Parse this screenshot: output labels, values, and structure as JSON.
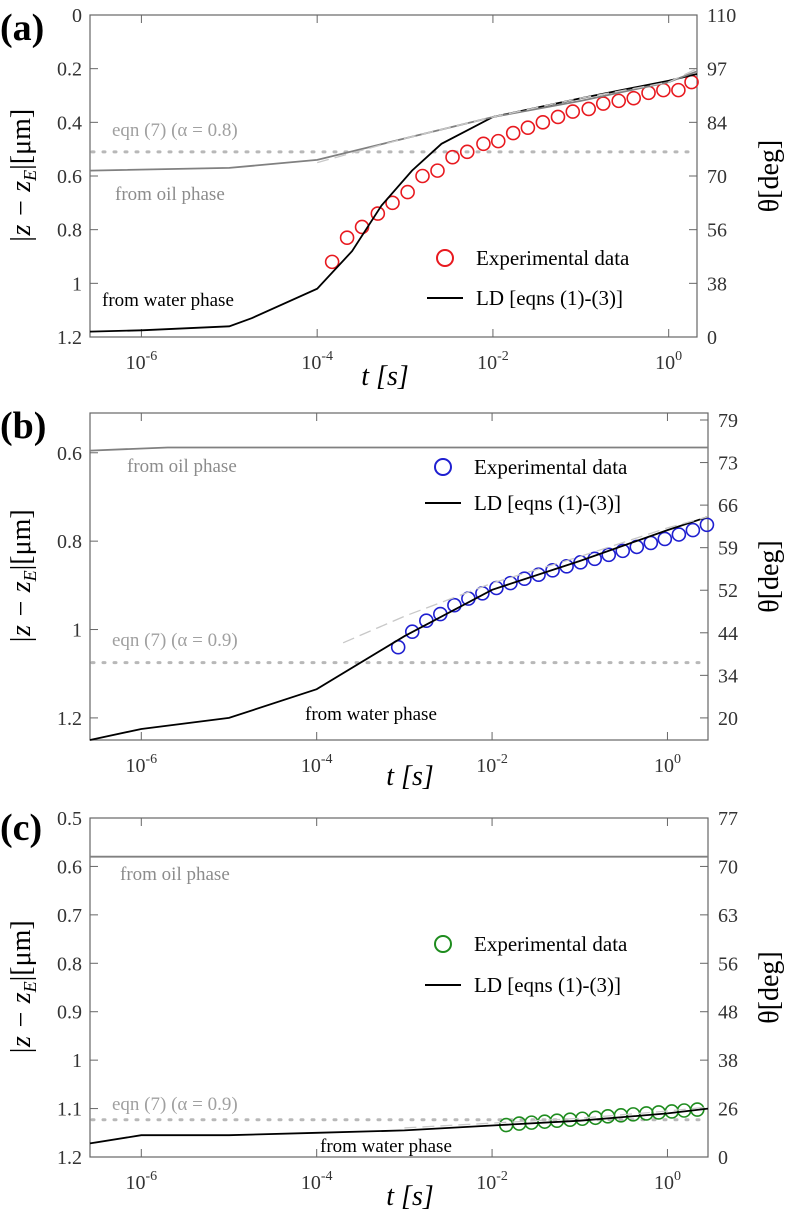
{
  "chart_data": [
    {
      "type": "line",
      "panel_label": "(a)",
      "xlabel": "t [s]",
      "ylabel": [
        "|z − z",
        "E",
        "|[μm]"
      ],
      "y2label": "θ[deg]",
      "xscale": "log",
      "xlim": [
        2.6e-07,
        2.1
      ],
      "xticks": [
        {
          "value": 1e-06,
          "label": "10",
          "exponent": "-6"
        },
        {
          "value": 0.0001,
          "label": "10",
          "exponent": "-4"
        },
        {
          "value": 0.01,
          "label": "10",
          "exponent": "-2"
        },
        {
          "value": 1,
          "label": "10",
          "exponent": "0"
        }
      ],
      "ylim": [
        0,
        1.2
      ],
      "y_reversed": true,
      "yticks": [
        0,
        0.2,
        0.4,
        0.6,
        0.8,
        1,
        1.2
      ],
      "y2ticks": [
        110,
        97,
        84,
        70,
        56,
        38,
        0
      ],
      "series": [
        {
          "name": "Experimental data",
          "color": "#e8191f",
          "marker": "circle",
          "x": [
            0.000148,
            0.000219,
            0.000324,
            0.00049,
            0.00072,
            0.00107,
            0.00158,
            0.00234,
            0.00347,
            0.0051,
            0.0078,
            0.0115,
            0.017,
            0.025,
            0.037,
            0.055,
            0.081,
            0.123,
            0.18,
            0.27,
            0.4,
            0.59,
            0.87,
            1.29,
            1.82
          ],
          "values": [
            0.92,
            0.83,
            0.79,
            0.74,
            0.7,
            0.66,
            0.6,
            0.58,
            0.53,
            0.51,
            0.48,
            0.47,
            0.44,
            0.42,
            0.4,
            0.38,
            0.36,
            0.35,
            0.33,
            0.32,
            0.31,
            0.29,
            0.28,
            0.28,
            0.25
          ]
        },
        {
          "name": "LD [eqns (1)-(3)]",
          "color": "#000000",
          "x": [
            2.6e-07,
            1e-06,
            1e-05,
            1.8e-05,
            0.0001,
            0.00025,
            0.00054,
            0.0012,
            0.0026,
            0.01,
            0.1,
            1,
            2.1
          ],
          "values": [
            1.18,
            1.175,
            1.16,
            1.13,
            1.02,
            0.88,
            0.71,
            0.58,
            0.48,
            0.38,
            0.31,
            0.245,
            0.22
          ]
        },
        {
          "color": "#808080",
          "x": [
            2.6e-07,
            1e-05,
            0.0001,
            0.001,
            0.01,
            0.1,
            1,
            2.1
          ],
          "values": [
            0.58,
            0.57,
            0.54,
            0.46,
            0.38,
            0.32,
            0.25,
            0.21
          ]
        },
        {
          "color": "#c8c8c8",
          "line_style": "dashed",
          "x": [
            0.0001,
            0.001,
            0.01,
            0.1,
            1,
            2.1
          ],
          "values": [
            0.55,
            0.46,
            0.38,
            0.31,
            0.25,
            0.2
          ]
        }
      ],
      "hlines": [
        {
          "value": 0.51,
          "color": "#b8b8b8",
          "line_style": "dotted"
        }
      ],
      "annotations": [
        {
          "text": "eqn (7) (α = 0.8)",
          "color": "#a0a0a0"
        },
        {
          "text": "from oil phase",
          "color": "#8c8c8c"
        },
        {
          "text": "from water phase",
          "color": "#000000"
        }
      ]
    },
    {
      "type": "line",
      "panel_label": "(b)",
      "xlabel": "t [s]",
      "ylabel": [
        "|z − z",
        "E",
        "|[μm]"
      ],
      "y2label": "θ[deg]",
      "xscale": "log",
      "xlim": [
        2.6e-07,
        2.9
      ],
      "xticks": [
        {
          "value": 1e-06,
          "label": "10",
          "exponent": "-6"
        },
        {
          "value": 0.0001,
          "label": "10",
          "exponent": "-4"
        },
        {
          "value": 0.01,
          "label": "10",
          "exponent": "-2"
        },
        {
          "value": 1,
          "label": "10",
          "exponent": "0"
        }
      ],
      "ylim": [
        0.51,
        1.25
      ],
      "y_reversed": true,
      "yticks": [
        0.6,
        0.8,
        1,
        1.2
      ],
      "y2ticks": [
        79,
        73,
        66,
        59,
        52,
        44,
        34,
        20
      ],
      "series": [
        {
          "name": "Experimental data",
          "color": "#1f1fd0",
          "marker": "circle",
          "x": [
            0.00085,
            0.00123,
            0.00178,
            0.00257,
            0.00372,
            0.00537,
            0.00776,
            0.0112,
            0.0162,
            0.0234,
            0.0339,
            0.049,
            0.0708,
            0.102,
            0.148,
            0.214,
            0.309,
            0.447,
            0.646,
            0.933,
            1.35,
            1.95,
            2.82
          ],
          "values": [
            1.04,
            1.005,
            0.98,
            0.965,
            0.945,
            0.93,
            0.918,
            0.906,
            0.895,
            0.885,
            0.876,
            0.866,
            0.857,
            0.848,
            0.84,
            0.831,
            0.822,
            0.813,
            0.804,
            0.795,
            0.785,
            0.775,
            0.763
          ]
        },
        {
          "name": "LD [eqns (1)-(3)]",
          "color": "#000000",
          "x": [
            2.6e-07,
            1e-06,
            1e-05,
            0.0001,
            0.001,
            0.01,
            0.1,
            1,
            2.9
          ],
          "values": [
            1.25,
            1.225,
            1.2,
            1.135,
            1.015,
            0.91,
            0.845,
            0.775,
            0.745
          ]
        },
        {
          "color": "#808080",
          "x": [
            2.6e-07,
            2e-06,
            2.9
          ],
          "values": [
            0.595,
            0.588,
            0.588
          ]
        },
        {
          "color": "#c8c8c8",
          "line_style": "dashed",
          "x": [
            0.0002,
            0.001,
            0.01,
            0.1,
            1,
            2.9
          ],
          "values": [
            1.03,
            0.97,
            0.895,
            0.835,
            0.77,
            0.745
          ]
        }
      ],
      "hlines": [
        {
          "value": 1.075,
          "color": "#b8b8b8",
          "line_style": "dotted"
        }
      ],
      "annotations": [
        {
          "text": "eqn (7) (α = 0.9)",
          "color": "#a0a0a0"
        },
        {
          "text": "from oil phase",
          "color": "#8c8c8c"
        },
        {
          "text": "from water phase",
          "color": "#000000"
        }
      ]
    },
    {
      "type": "line",
      "panel_label": "(c)",
      "xlabel": "t [s]",
      "ylabel": [
        "|z − z",
        "E",
        "|[μm]"
      ],
      "y2label": "θ[deg]",
      "xscale": "log",
      "xlim": [
        2.6e-07,
        2.9
      ],
      "xticks": [
        {
          "value": 1e-06,
          "label": "10",
          "exponent": "-6"
        },
        {
          "value": 0.0001,
          "label": "10",
          "exponent": "-4"
        },
        {
          "value": 0.01,
          "label": "10",
          "exponent": "-2"
        },
        {
          "value": 1,
          "label": "10",
          "exponent": "0"
        }
      ],
      "ylim": [
        0.5,
        1.2
      ],
      "y_reversed": true,
      "yticks": [
        0.5,
        0.6,
        0.7,
        0.8,
        0.9,
        1,
        1.1,
        1.2
      ],
      "y2ticks": [
        77,
        70,
        63,
        56,
        48,
        38,
        26,
        0
      ],
      "series": [
        {
          "name": "Experimental data",
          "color": "#1e8c1e",
          "marker": "circle",
          "x": [
            0.0145,
            0.0204,
            0.0282,
            0.0398,
            0.055,
            0.0776,
            0.107,
            0.151,
            0.209,
            0.295,
            0.407,
            0.575,
            0.794,
            1.12,
            1.55,
            2.19
          ],
          "values": [
            1.134,
            1.131,
            1.129,
            1.127,
            1.125,
            1.123,
            1.121,
            1.119,
            1.116,
            1.114,
            1.112,
            1.11,
            1.108,
            1.106,
            1.104,
            1.102
          ]
        },
        {
          "name": "LD [eqns (1)-(3)]",
          "color": "#000000",
          "x": [
            2.6e-07,
            1e-06,
            1e-05,
            0.0001,
            0.001,
            0.01,
            0.1,
            1,
            2.9
          ],
          "values": [
            1.172,
            1.155,
            1.155,
            1.15,
            1.145,
            1.135,
            1.125,
            1.11,
            1.1
          ]
        },
        {
          "color": "#808080",
          "x": [
            2.6e-07,
            2.9
          ],
          "values": [
            0.58,
            0.58
          ]
        },
        {
          "color": "#c8c8c8",
          "line_style": "dashed",
          "x": [
            0.001,
            0.01,
            0.1,
            1,
            2.9
          ],
          "values": [
            1.14,
            1.13,
            1.12,
            1.105,
            1.097
          ]
        }
      ],
      "hlines": [
        {
          "value": 1.123,
          "color": "#b8b8b8",
          "line_style": "dotted"
        }
      ],
      "annotations": [
        {
          "text": "eqn (7) (α = 0.9)",
          "color": "#a0a0a0"
        },
        {
          "text": "from oil phase",
          "color": "#8c8c8c"
        },
        {
          "text": "from water phase",
          "color": "#000000"
        }
      ]
    }
  ]
}
